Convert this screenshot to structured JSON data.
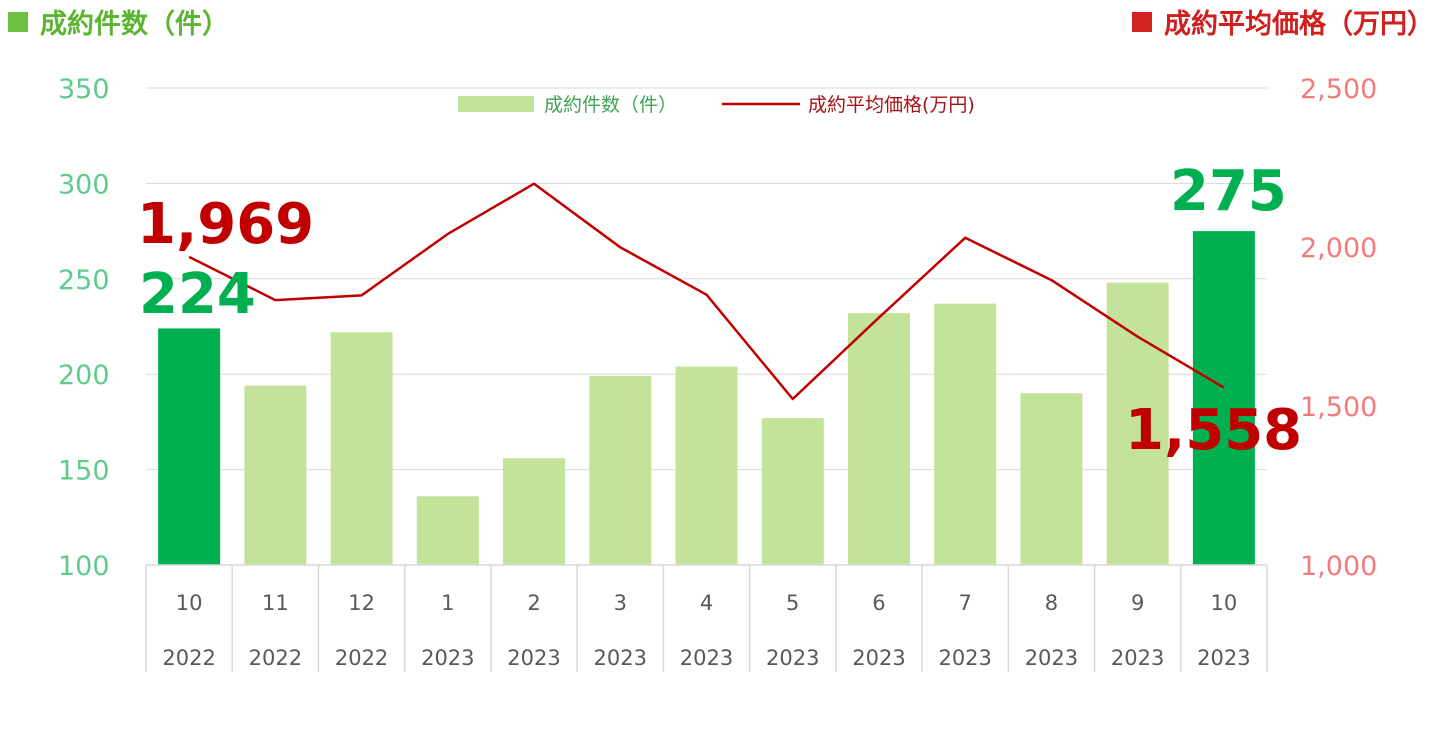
{
  "header": {
    "left_title": "成約件数（件）",
    "right_title": "成約平均価格（万円）"
  },
  "colors": {
    "bar_light": "#c3e39b",
    "bar_highlight": "#00b050",
    "line": "#c00000",
    "left_axis_text": "#5fcb8e",
    "right_axis_text": "#f27b7b",
    "header_green": "#5cb531",
    "header_red": "#d01f1f"
  },
  "chart_data": {
    "type": "bar",
    "categories": [
      {
        "month": "10",
        "year": "2022"
      },
      {
        "month": "11",
        "year": "2022"
      },
      {
        "month": "12",
        "year": "2022"
      },
      {
        "month": "1",
        "year": "2023"
      },
      {
        "month": "2",
        "year": "2023"
      },
      {
        "month": "3",
        "year": "2023"
      },
      {
        "month": "4",
        "year": "2023"
      },
      {
        "month": "5",
        "year": "2023"
      },
      {
        "month": "6",
        "year": "2023"
      },
      {
        "month": "7",
        "year": "2023"
      },
      {
        "month": "8",
        "year": "2023"
      },
      {
        "month": "9",
        "year": "2023"
      },
      {
        "month": "10",
        "year": "2023"
      }
    ],
    "series": [
      {
        "name": "成約件数（件）",
        "type": "bar",
        "axis": "left",
        "values": [
          224,
          194,
          222,
          136,
          156,
          199,
          204,
          177,
          232,
          237,
          190,
          248,
          275
        ],
        "highlight_indices": [
          0,
          12
        ]
      },
      {
        "name": "成約平均価格(万円)",
        "type": "line",
        "axis": "right",
        "values": [
          1969,
          1833,
          1848,
          2041,
          2199,
          1999,
          1850,
          1522,
          1778,
          2029,
          1896,
          1718,
          1558
        ]
      }
    ],
    "left_axis": {
      "min": 100,
      "max": 350,
      "ticks": [
        "100",
        "150",
        "200",
        "250",
        "300",
        "350"
      ]
    },
    "right_axis": {
      "min": 1000,
      "max": 2500,
      "ticks": [
        "1,000",
        "1,500",
        "2,000",
        "2,500"
      ]
    },
    "annotations": [
      {
        "text": "1,969",
        "series": 1,
        "index": 0
      },
      {
        "text": "224",
        "series": 0,
        "index": 0
      },
      {
        "text": "275",
        "series": 0,
        "index": 12
      },
      {
        "text": "1,558",
        "series": 1,
        "index": 12
      }
    ],
    "legend": {
      "placement": "top-center"
    },
    "grid": true
  }
}
